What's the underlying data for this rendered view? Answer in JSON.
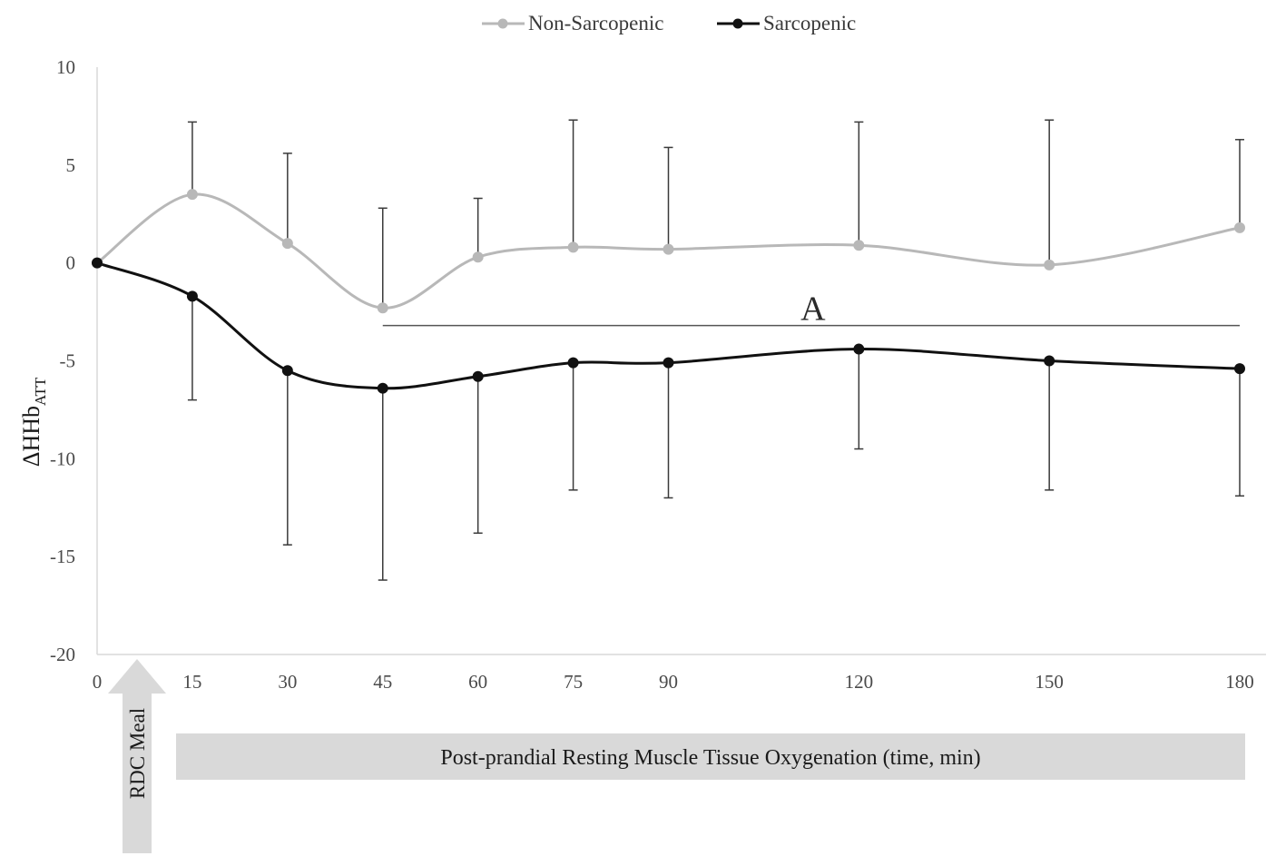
{
  "chart_data": {
    "type": "line",
    "title": "",
    "ylabel": "ΔHHb",
    "ylabel_sub": "ATT",
    "xlabel": "Post-prandial  Resting Muscle Tissue Oxygenation (time, min)",
    "x": [
      0,
      15,
      30,
      45,
      60,
      75,
      90,
      120,
      150,
      180
    ],
    "x_tick_labels": [
      "0",
      "15",
      "30",
      "45",
      "60",
      "75",
      "90",
      "120",
      "150",
      "180"
    ],
    "ylim": [
      -20,
      10
    ],
    "y_ticks": [
      10,
      5,
      0,
      -5,
      -10,
      -15,
      -20
    ],
    "y_tick_labels": [
      "10",
      "5",
      "0",
      "-5",
      "-10",
      "-15",
      "-20"
    ],
    "legend_position": "top-center",
    "grid": false,
    "series": [
      {
        "name": "Non-Sarcopenic",
        "color": "#b8b8b8",
        "values": [
          0,
          3.5,
          1.0,
          -2.3,
          0.3,
          0.8,
          0.7,
          0.9,
          -0.1,
          1.8
        ],
        "error_upper": [
          0,
          7.2,
          5.6,
          2.8,
          3.3,
          7.3,
          5.9,
          7.2,
          7.3,
          6.3
        ]
      },
      {
        "name": "Sarcopenic",
        "color": "#111111",
        "values": [
          0,
          -1.7,
          -5.5,
          -6.4,
          -5.8,
          -5.1,
          -5.1,
          -4.4,
          -5.0,
          -5.4
        ],
        "error_lower": [
          0,
          -7.0,
          -14.4,
          -16.2,
          -13.8,
          -11.6,
          -12.0,
          -9.5,
          -11.6,
          -11.9
        ]
      }
    ],
    "annotations": [
      {
        "text": "A",
        "x_start": 45,
        "x_end": 180,
        "y": -3.2
      }
    ],
    "meal_marker": {
      "label": "RDC Meal",
      "x": 7.5
    }
  }
}
